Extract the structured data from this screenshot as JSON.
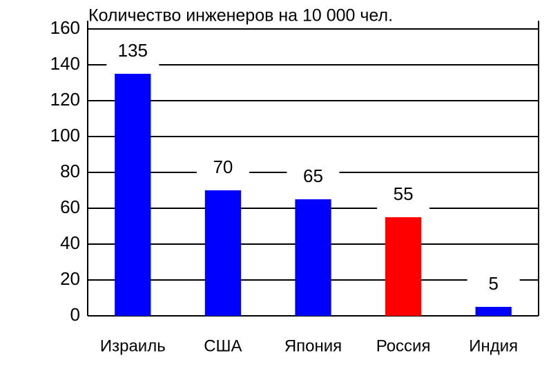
{
  "chart_data": {
    "type": "bar",
    "title": "Количество инженеров на 10 000 чел.",
    "categories": [
      "Израиль",
      "США",
      "Япония",
      "Россия",
      "Индия"
    ],
    "values": [
      135,
      70,
      65,
      55,
      5
    ],
    "colors": [
      "#0000ff",
      "#0000ff",
      "#0000ff",
      "#ff0000",
      "#0000ff"
    ],
    "ylim": [
      0,
      160
    ],
    "yticks": [
      0,
      20,
      40,
      60,
      80,
      100,
      120,
      140,
      160
    ],
    "grid": true
  }
}
